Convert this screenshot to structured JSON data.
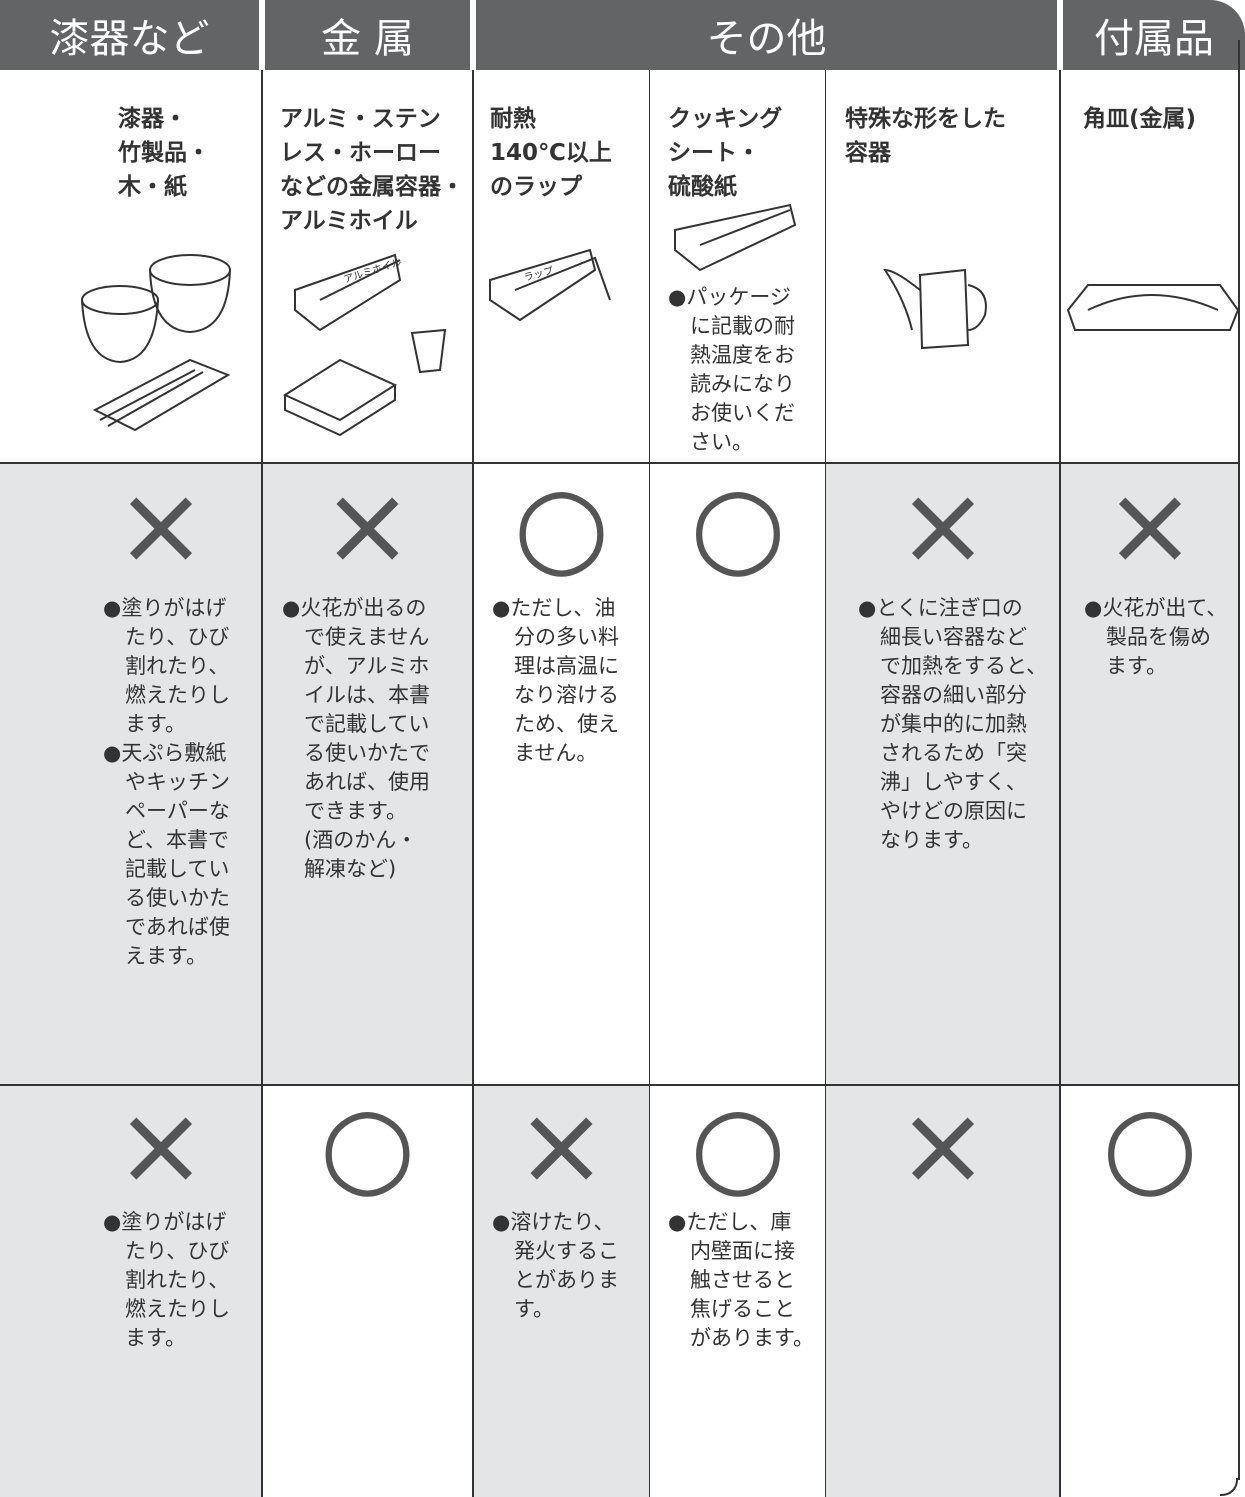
{
  "header": {
    "groups": [
      "漆器など",
      "金 属",
      "その他",
      "付属品"
    ]
  },
  "columns": [
    {
      "name": [
        "漆器・",
        "竹製品・",
        "木・紙"
      ]
    },
    {
      "name": [
        "アルミ・ステン",
        "レス・ホーロー",
        "などの金属容器・",
        "アルミホイル"
      ],
      "illustration_label": "アルミホイル"
    },
    {
      "name": [
        "耐熱",
        "140℃以上",
        "のラップ"
      ],
      "illustration_label": "ラップ"
    },
    {
      "name": [
        "クッキング",
        "シート・",
        "硫酸紙"
      ],
      "note": [
        "●パッケージ",
        "に記載の耐",
        "熱温度をお",
        "読みになり",
        "お使いくだ",
        "さい。"
      ]
    },
    {
      "name": [
        "特殊な形をした",
        "容器"
      ]
    },
    {
      "name": [
        "角皿(金属)"
      ]
    }
  ],
  "rows": [
    {
      "marks": [
        "×",
        "×",
        "○",
        "○",
        "×",
        "×"
      ],
      "notes": [
        [
          [
            "●塗りがはげ",
            "たり、ひび",
            "割れたり、",
            "燃えたりし",
            "ます。"
          ],
          [
            "●天ぷら敷紙",
            "やキッチン",
            "ペーパーな",
            "ど、本書で",
            "記載してい",
            "る使いかた",
            "であれば使",
            "えます。"
          ]
        ],
        [
          [
            "●火花が出るの",
            "で使えません",
            "が、アルミホ",
            "イルは、本書",
            "で記載してい",
            "る使いかたで",
            "あれば、使用",
            "できます。",
            "(酒のかん・",
            "解凍など)"
          ]
        ],
        [
          [
            "●ただし、油",
            "分の多い料",
            "理は高温に",
            "なり溶ける",
            "ため、使え",
            "ません。"
          ]
        ],
        [],
        [
          [
            "●とくに注ぎ口の",
            "細長い容器など",
            "で加熱をすると、",
            "容器の細い部分",
            "が集中的に加熱",
            "されるため「突",
            "沸」しやすく、",
            "やけどの原因に",
            "なります。"
          ]
        ],
        [
          [
            "●火花が出て、",
            "製品を傷め",
            "ます。"
          ]
        ]
      ]
    },
    {
      "marks": [
        "×",
        "○",
        "×",
        "○",
        "×",
        "○"
      ],
      "notes": [
        [
          [
            "●塗りがはげ",
            "たり、ひび",
            "割れたり、",
            "燃えたりし",
            "ます。"
          ]
        ],
        [],
        [
          [
            "●溶けたり、",
            "発火するこ",
            "とがありま",
            "す。"
          ]
        ],
        [
          [
            "●ただし、庫",
            "内壁面に接",
            "触させると",
            "焦げること",
            "があります。"
          ]
        ],
        [],
        []
      ]
    }
  ]
}
